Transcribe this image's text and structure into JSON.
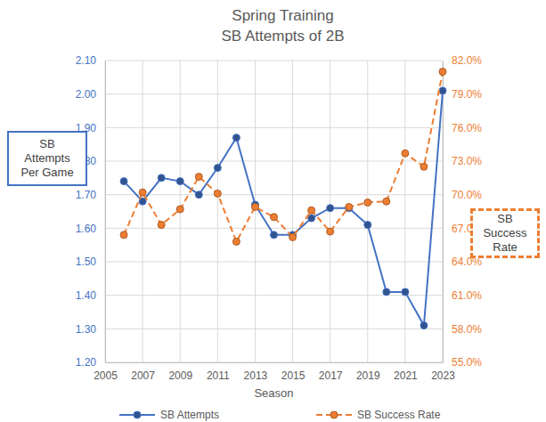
{
  "chart_data": {
    "type": "line",
    "title": "Spring Training",
    "subtitle": "SB Attempts of 2B",
    "x_label": "Season",
    "y_label": "SB\nAttempts\nPer Game",
    "y2_label": "SB\nSuccess Rate",
    "x": [
      2006,
      2007,
      2008,
      2009,
      2010,
      2011,
      2012,
      2013,
      2014,
      2015,
      2016,
      2017,
      2018,
      2019,
      2020,
      2021,
      2022,
      2023
    ],
    "series": [
      {
        "name": "SB Attempts",
        "color": "#4472c4",
        "marker": "circle",
        "line_style": "solid",
        "values": [
          1.74,
          1.68,
          1.75,
          1.74,
          1.7,
          1.78,
          1.87,
          1.67,
          1.58,
          1.58,
          1.63,
          1.66,
          1.66,
          1.61,
          1.41,
          1.41,
          1.31,
          2.01
        ]
      },
      {
        "name": "SB Success Rate",
        "color": "#ed7d31",
        "marker": "circle",
        "line_style": "dashed",
        "axis": "y2",
        "values": [
          66.4,
          70.2,
          67.3,
          68.7,
          71.6,
          70.1,
          65.8,
          68.9,
          68.0,
          66.2,
          68.6,
          66.7,
          68.9,
          69.3,
          69.4,
          73.7,
          72.5,
          81.0
        ]
      }
    ],
    "xlim": [
      2005,
      2023
    ],
    "xticks": [
      2005,
      2007,
      2009,
      2011,
      2013,
      2015,
      2017,
      2019,
      2021,
      2023
    ],
    "ylim": [
      1.2,
      2.1
    ],
    "yticks": [
      {
        "value": 1.2,
        "label": "1.20"
      },
      {
        "value": 1.3,
        "label": "1.30"
      },
      {
        "value": 1.4,
        "label": "1.40"
      },
      {
        "value": 1.5,
        "label": "1.50"
      },
      {
        "value": 1.6,
        "label": "1.60"
      },
      {
        "value": 1.7,
        "label": "1.70"
      },
      {
        "value": 1.8,
        "label": "1.80"
      },
      {
        "value": 1.9,
        "label": "1.90"
      },
      {
        "value": 2.0,
        "label": "2.00"
      },
      {
        "value": 2.1,
        "label": "2.10"
      }
    ],
    "y2lim": [
      55,
      82
    ],
    "y2ticks": [
      {
        "value": 55,
        "label": "55.0%"
      },
      {
        "value": 58,
        "label": "58.0%"
      },
      {
        "value": 61,
        "label": "61.0%"
      },
      {
        "value": 64,
        "label": "64.0%"
      },
      {
        "value": 67,
        "label": "67.0%"
      },
      {
        "value": 70,
        "label": "70.0%"
      },
      {
        "value": 73,
        "label": "73.0%"
      },
      {
        "value": 76,
        "label": "76.0%"
      },
      {
        "value": 79,
        "label": "79.0%"
      },
      {
        "value": 82,
        "label": "82.0%"
      }
    ],
    "grid": true,
    "legend": "bottom"
  }
}
